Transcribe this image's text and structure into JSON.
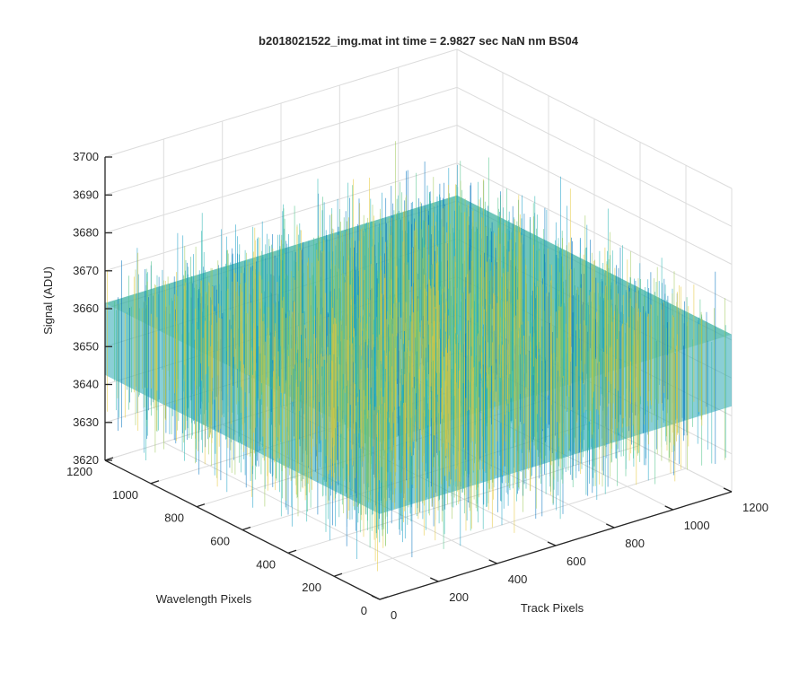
{
  "chart_data": {
    "type": "surface",
    "title": "b2018021522_img.mat int time = 2.9827 sec  NaN nm BS04",
    "xlabel": "Track Pixels",
    "ylabel": "Wavelength Pixels",
    "zlabel": "Signal (ADU)",
    "xlim": [
      0,
      1200
    ],
    "ylim": [
      0,
      1200
    ],
    "zlim": [
      3620,
      3700
    ],
    "xticks": [
      0,
      200,
      400,
      600,
      800,
      1000,
      1200
    ],
    "yticks": [
      0,
      200,
      400,
      600,
      800,
      1000,
      1200
    ],
    "zticks": [
      3620,
      3630,
      3640,
      3650,
      3660,
      3670,
      3680,
      3690,
      3700
    ],
    "surface_extent": {
      "x": [
        0,
        1200
      ],
      "y": [
        0,
        1200
      ]
    },
    "signal_mean": 3652,
    "signal_noise_range": [
      3625,
      3695
    ],
    "grid": true,
    "colormap": [
      "#0072bd",
      "#1a9fc7",
      "#2ab6b2",
      "#4cc388",
      "#9fc95a",
      "#e5c83a"
    ]
  }
}
